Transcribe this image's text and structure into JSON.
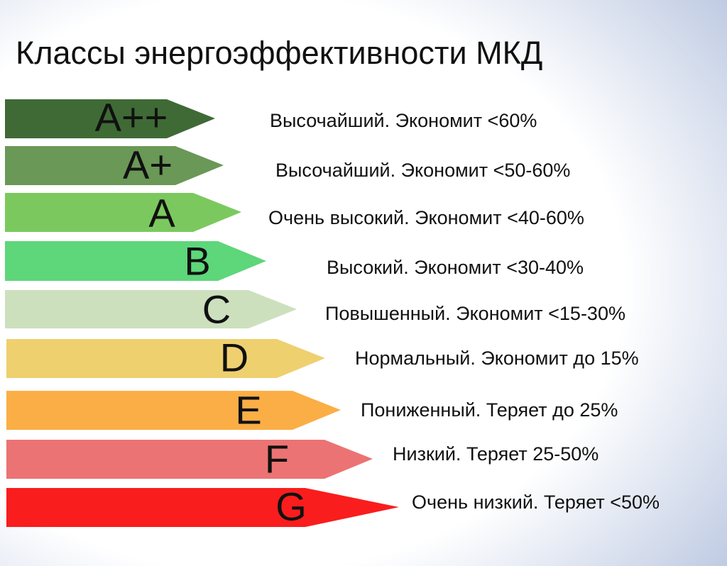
{
  "title": "Классы энергоэффективности МКД",
  "classes": [
    {
      "label": "A++",
      "description": "Высочайший. Экономит <60%"
    },
    {
      "label": "A+",
      "description": "Высочайший. Экономит <50-60%"
    },
    {
      "label": "A",
      "description": "Очень высокий. Экономит <40-60%"
    },
    {
      "label": "B",
      "description": "Высокий. Экономит <30-40%"
    },
    {
      "label": "C",
      "description": "Повышенный. Экономит <15-30%"
    },
    {
      "label": "D",
      "description": "Нормальный. Экономит до 15%"
    },
    {
      "label": "E",
      "description": "Пониженный. Теряет до 25%"
    },
    {
      "label": "F",
      "description": "Низкий. Теряет 25-50%"
    },
    {
      "label": "G",
      "description": "Очень низкий. Теряет <50%"
    }
  ]
}
